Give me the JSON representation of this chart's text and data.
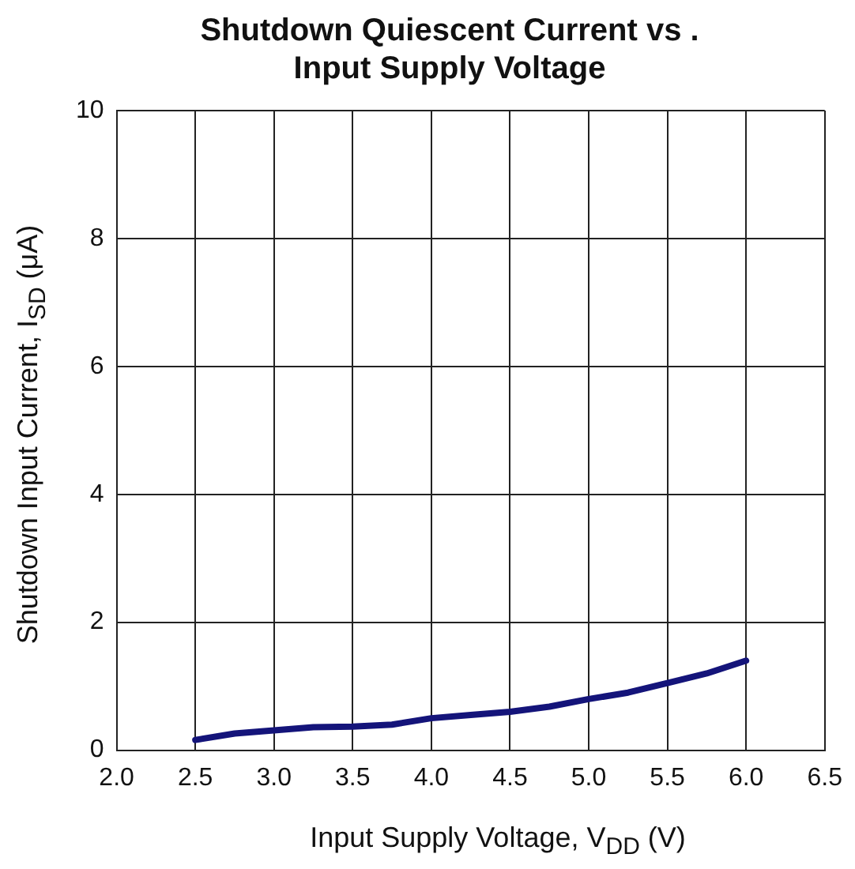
{
  "chart_data": {
    "type": "line",
    "title": "Shutdown Quiescent Current vs .\nInput Supply Voltage",
    "xlabel": "Input Supply Voltage, V$_{DD}$ (V)",
    "ylabel": "Shutdown Input Current, I$_{SD}$ (μA)",
    "x": [
      2.5,
      2.75,
      3.0,
      3.25,
      3.5,
      3.75,
      4.0,
      4.25,
      4.5,
      4.75,
      5.0,
      5.25,
      5.5,
      5.75,
      6.0
    ],
    "series": [
      {
        "color": "#14147a",
        "values": [
          0.16,
          0.26,
          0.31,
          0.36,
          0.37,
          0.4,
          0.5,
          0.55,
          0.6,
          0.68,
          0.8,
          0.9,
          1.05,
          1.2,
          1.4
        ]
      }
    ],
    "xlim": [
      2.0,
      6.5
    ],
    "ylim": [
      0,
      10
    ],
    "xticks": [
      {
        "value": 2,
        "label": "2.0"
      },
      {
        "value": 2.5,
        "label": "2.5"
      },
      {
        "value": 3,
        "label": "3.0"
      },
      {
        "value": 3.5,
        "label": "3.5"
      },
      {
        "value": 4,
        "label": "4.0"
      },
      {
        "value": 4.5,
        "label": "4.5"
      },
      {
        "value": 5,
        "label": "5.0"
      },
      {
        "value": 5.5,
        "label": "5.5"
      },
      {
        "value": 6,
        "label": "6.0"
      },
      {
        "value": 6.5,
        "label": "6.5"
      }
    ],
    "yticks": [
      0,
      2,
      4,
      6,
      8,
      10
    ],
    "grid": true,
    "legend": false,
    "marker": "none",
    "line_style": "solid"
  }
}
